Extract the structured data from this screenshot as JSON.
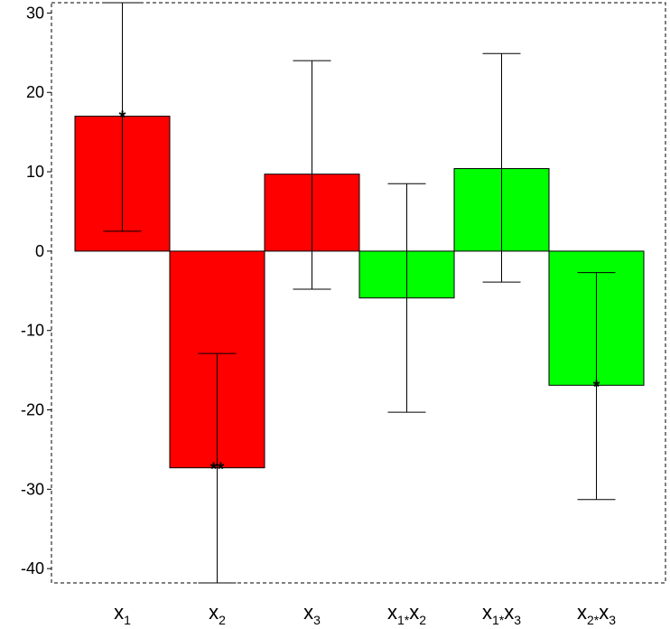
{
  "chart_data": {
    "type": "bar",
    "categories": [
      {
        "base": "x",
        "parts": [
          {
            "sub": "1"
          }
        ]
      },
      {
        "base": "x",
        "parts": [
          {
            "sub": "2"
          }
        ]
      },
      {
        "base": "x",
        "parts": [
          {
            "sub": "3"
          }
        ]
      },
      {
        "base": "x",
        "parts": [
          {
            "sub": "1"
          },
          {
            "op": "*",
            "base": "x",
            "sub": "2"
          }
        ]
      },
      {
        "base": "x",
        "parts": [
          {
            "sub": "1"
          },
          {
            "op": "*",
            "base": "x",
            "sub": "3"
          }
        ]
      },
      {
        "base": "x",
        "parts": [
          {
            "sub": "2"
          },
          {
            "op": "*",
            "base": "x",
            "sub": "3"
          }
        ]
      }
    ],
    "values": [
      17.0,
      -27.3,
      9.7,
      -5.9,
      10.4,
      -16.9
    ],
    "error_low": [
      2.5,
      -41.8,
      -4.8,
      -20.3,
      -3.9,
      -31.3
    ],
    "error_high": [
      31.3,
      -12.9,
      24.0,
      8.5,
      24.9,
      -2.7
    ],
    "colors": [
      "#ff0000",
      "#ff0000",
      "#ff0000",
      "#00ff00",
      "#00ff00",
      "#00ff00"
    ],
    "significance": [
      "*",
      "**",
      "",
      "",
      "",
      "*"
    ],
    "ylim": [
      -41.8,
      31.3
    ],
    "yticks": [
      30,
      20,
      10,
      0,
      -10,
      -20,
      -30,
      -40
    ],
    "grid": false,
    "title": "",
    "xlabel": "",
    "ylabel": ""
  }
}
